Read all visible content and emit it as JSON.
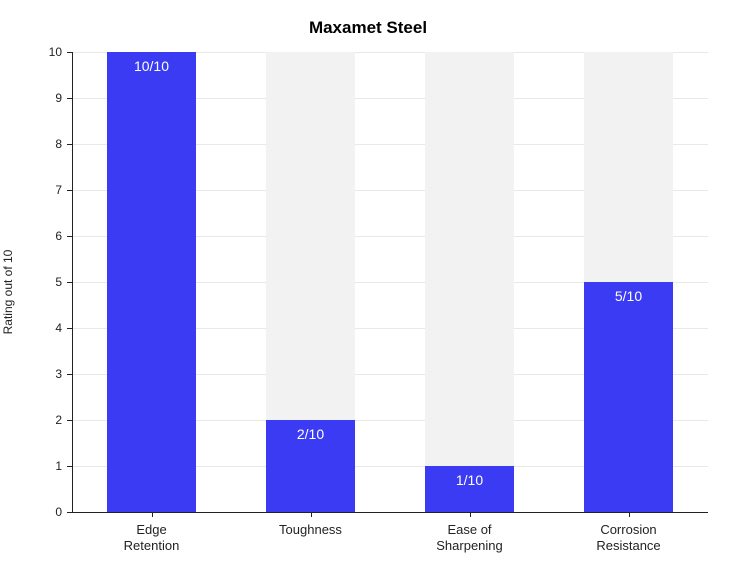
{
  "chart": {
    "type": "bar",
    "title": "Maxamet Steel",
    "title_fontsize": 17,
    "title_fontweight": 600,
    "ylabel": "Rating out of 10",
    "ylabel_fontsize": 12,
    "ylim": [
      0,
      10
    ],
    "ytick_step": 1,
    "yticks": [
      0,
      1,
      2,
      3,
      4,
      5,
      6,
      7,
      8,
      9,
      10
    ],
    "categories": [
      [
        "Edge",
        "Retention"
      ],
      [
        "Toughness"
      ],
      [
        "Ease of",
        "Sharpening"
      ],
      [
        "Corrosion",
        "Resistance"
      ]
    ],
    "values": [
      10,
      2,
      1,
      5
    ],
    "max_value": 10,
    "value_labels": [
      "10/10",
      "2/10",
      "1/10",
      "5/10"
    ],
    "bar_color": "#3b3bf3",
    "bar_bg_color": "#f2f2f2",
    "background_color": "#ffffff",
    "grid_color": "#e8e8e8",
    "axis_color": "#222222",
    "text_color": "#222222",
    "value_text_color": "#ffffff",
    "value_fontsize": 14,
    "xlabel_fontsize": 13,
    "ytick_fontsize": 12,
    "bar_width_ratio": 0.56,
    "n_bars": 4
  }
}
